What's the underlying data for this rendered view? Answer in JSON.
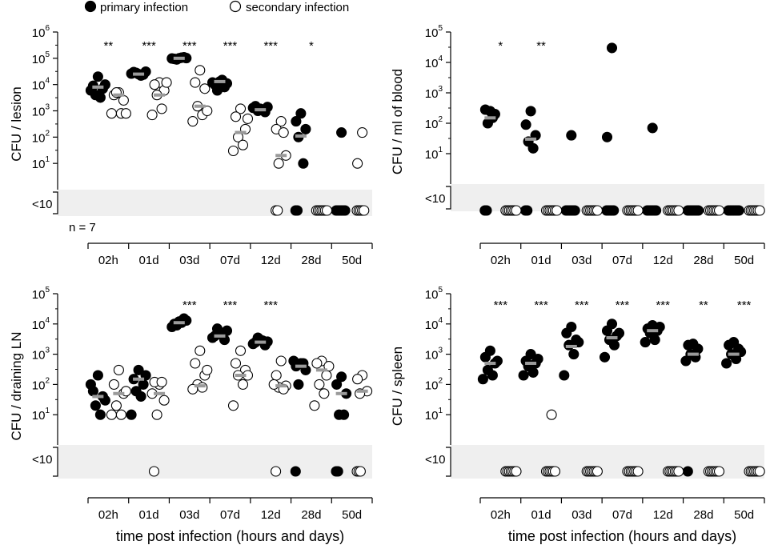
{
  "legend": {
    "primary": "primary infection",
    "secondary": "secondary infection"
  },
  "n_label": "n = 7",
  "below_label": "<10",
  "colors": {
    "band": "#efefef",
    "median": "#9a9a9a",
    "primary": "#000000",
    "secondary": "#ffffff"
  },
  "chart_data": [
    {
      "type": "scatter",
      "id": "lesion",
      "ylabel": "CFU / lesion",
      "xlabel": "",
      "categories": [
        "02h",
        "01d",
        "03d",
        "07d",
        "12d",
        "28d",
        "50d"
      ],
      "yscale": "log",
      "ylim": [
        1,
        1000000
      ],
      "yticks_exp": [
        1,
        2,
        3,
        4,
        5,
        6
      ],
      "below_detection": "<10",
      "stars": [
        "**",
        "***",
        "***",
        "***",
        "***",
        "*",
        ""
      ],
      "series": [
        {
          "name": "primary infection",
          "medians": [
            8000,
            25000,
            100000,
            13000,
            1100,
            110,
            null
          ],
          "points": [
            [
              20000,
              9000,
              7000,
              4000,
              3200,
              6000,
              10000
            ],
            [
              25000,
              30000,
              24000,
              28000,
              22000,
              26000,
              31000
            ],
            [
              100000,
              95000,
              110000,
              90000,
              105000,
              98000,
              102000
            ],
            [
              13000,
              10000,
              8000,
              6000,
              15000,
              12000,
              11000
            ],
            [
              1200,
              1500,
              900,
              1000,
              1100,
              1300,
              1400
            ],
            [
              800,
              400,
              200,
              100,
              10,
              "BD",
              "BD"
            ],
            [
              150,
              "BD",
              "BD",
              "BD",
              "BD",
              "BD",
              "BD"
            ]
          ]
        },
        {
          "name": "secondary infection",
          "medians": [
            4000,
            4000,
            1500,
            150,
            20,
            null,
            null
          ],
          "points": [
            [
              5000,
              4000,
              2500,
              5000,
              800,
              800,
              800
            ],
            [
              12000,
              10000,
              6000,
              4000,
              1200,
              700,
              12000
            ],
            [
              35000,
              12000,
              7000,
              1500,
              700,
              400,
              1000
            ],
            [
              1200,
              600,
              200,
              100,
              50,
              30,
              500
            ],
            [
              400,
              200,
              20,
              10,
              "BD",
              "BD",
              150
            ],
            [
              "BD",
              "BD",
              "BD",
              "BD",
              "BD",
              "BD",
              "BD"
            ],
            [
              150,
              10,
              "BD",
              "BD",
              "BD",
              "BD",
              "BD"
            ]
          ]
        }
      ]
    },
    {
      "type": "scatter",
      "id": "blood",
      "ylabel": "CFU / ml of blood",
      "xlabel": "",
      "categories": [
        "02h",
        "01d",
        "03d",
        "07d",
        "12d",
        "28d",
        "50d"
      ],
      "yscale": "log",
      "ylim": [
        1,
        100000
      ],
      "yticks_exp": [
        1,
        2,
        3,
        4,
        5
      ],
      "below_detection": "<10",
      "stars": [
        "*",
        "**",
        "",
        "",
        "",
        "",
        ""
      ],
      "series": [
        {
          "name": "primary infection",
          "medians": [
            150,
            30,
            null,
            null,
            null,
            null,
            null
          ],
          "points": [
            [
              250,
              280,
              200,
              100,
              150,
              "BD",
              "BD"
            ],
            [
              250,
              90,
              40,
              25,
              15,
              "BD",
              "BD"
            ],
            [
              40,
              "BD",
              "BD",
              "BD",
              "BD",
              "BD",
              "BD"
            ],
            [
              30000,
              35,
              "BD",
              "BD",
              "BD",
              "BD",
              "BD"
            ],
            [
              70,
              "BD",
              "BD",
              "BD",
              "BD",
              "BD",
              "BD"
            ],
            [
              "BD",
              "BD",
              "BD",
              "BD",
              "BD",
              "BD",
              "BD"
            ],
            [
              "BD",
              "BD",
              "BD",
              "BD",
              "BD",
              "BD",
              "BD"
            ]
          ]
        },
        {
          "name": "secondary infection",
          "medians": [
            null,
            null,
            null,
            null,
            null,
            null,
            null
          ],
          "points": [
            [
              "BD",
              "BD",
              "BD",
              "BD",
              "BD",
              "BD",
              "BD"
            ],
            [
              "BD",
              "BD",
              "BD",
              "BD",
              "BD",
              "BD",
              "BD"
            ],
            [
              "BD",
              "BD",
              "BD",
              "BD",
              "BD",
              "BD",
              "BD"
            ],
            [
              "BD",
              "BD",
              "BD",
              "BD",
              "BD",
              "BD",
              "BD"
            ],
            [
              "BD",
              "BD",
              "BD",
              "BD",
              "BD",
              "BD",
              "BD"
            ],
            [
              "BD",
              "BD",
              "BD",
              "BD",
              "BD",
              "BD",
              "BD"
            ],
            [
              "BD",
              "BD",
              "BD",
              "BD",
              "BD",
              "BD",
              "BD"
            ]
          ]
        }
      ]
    },
    {
      "type": "scatter",
      "id": "draining-ln",
      "ylabel": "CFU / draining LN",
      "xlabel": "time post infection (hours and days)",
      "categories": [
        "02h",
        "01d",
        "03d",
        "07d",
        "12d",
        "28d",
        "50d"
      ],
      "yscale": "log",
      "ylim": [
        1,
        100000
      ],
      "yticks_exp": [
        1,
        2,
        3,
        4,
        5
      ],
      "below_detection": "<10",
      "stars": [
        "",
        "",
        "***",
        "***",
        "***",
        "",
        ""
      ],
      "series": [
        {
          "name": "primary infection",
          "medians": [
            40,
            150,
            11000,
            4000,
            2500,
            400,
            50
          ],
          "points": [
            [
              200,
              60,
              40,
              20,
              10,
              100,
              30
            ],
            [
              300,
              150,
              100,
              60,
              40,
              10,
              200
            ],
            [
              12000,
              10000,
              15000,
              9000,
              11000,
              8000,
              13000
            ],
            [
              5000,
              4000,
              3000,
              7000,
              4500,
              3500,
              6000
            ],
            [
              3000,
              2500,
              2000,
              3500,
              2800,
              2200,
              2600
            ],
            [
              500,
              400,
              300,
              100,
              500,
              600,
              "BD"
            ],
            [
              180,
              100,
              50,
              10,
              10,
              "BD",
              "BD"
            ]
          ]
        },
        {
          "name": "secondary infection",
          "medians": [
            50,
            50,
            90,
            200,
            90,
            300,
            60
          ],
          "points": [
            [
              300,
              100,
              50,
              20,
              10,
              10,
              60
            ],
            [
              100,
              120,
              30,
              10,
              "BD",
              120,
              50
            ],
            [
              1300,
              500,
              200,
              100,
              80,
              70,
              300
            ],
            [
              1300,
              500,
              300,
              200,
              100,
              20,
              200
            ],
            [
              600,
              200,
              90,
              80,
              70,
              100,
              "BD"
            ],
            [
              600,
              500,
              200,
              100,
              50,
              20,
              400
            ],
            [
              200,
              150,
              60,
              50,
              "BD",
              "BD",
              "BD"
            ]
          ]
        }
      ]
    },
    {
      "type": "scatter",
      "id": "spleen",
      "ylabel": "CFU / spleen",
      "xlabel": "time post infection (hours and days)",
      "categories": [
        "02h",
        "01d",
        "03d",
        "07d",
        "12d",
        "28d",
        "50d"
      ],
      "yscale": "log",
      "ylim": [
        1,
        100000
      ],
      "yticks_exp": [
        1,
        2,
        3,
        4,
        5
      ],
      "below_detection": "<10",
      "stars": [
        "***",
        "***",
        "***",
        "***",
        "***",
        "**",
        "***"
      ],
      "series": [
        {
          "name": "primary infection",
          "medians": [
            500,
            500,
            1800,
            3500,
            6000,
            1000,
            1000
          ],
          "points": [
            [
              1300,
              800,
              500,
              300,
              200,
              150,
              600
            ],
            [
              1000,
              600,
              500,
              400,
              250,
              200,
              700
            ],
            [
              8000,
              5000,
              3000,
              2000,
              1000,
              200,
              2500
            ],
            [
              10000,
              6000,
              4000,
              3000,
              2000,
              800,
              5000
            ],
            [
              9000,
              7000,
              6000,
              5000,
              3000,
              2500,
              8000
            ],
            [
              2200,
              2000,
              1500,
              1000,
              800,
              600,
              "BD"
            ],
            [
              2500,
              2000,
              1500,
              1000,
              700,
              500,
              1200
            ]
          ]
        },
        {
          "name": "secondary infection",
          "medians": [
            null,
            null,
            null,
            null,
            null,
            null,
            null
          ],
          "points": [
            [
              "BD",
              "BD",
              "BD",
              "BD",
              "BD",
              "BD",
              "BD"
            ],
            [
              10,
              "BD",
              "BD",
              "BD",
              "BD",
              "BD",
              "BD"
            ],
            [
              "BD",
              "BD",
              "BD",
              "BD",
              "BD",
              "BD",
              "BD"
            ],
            [
              "BD",
              "BD",
              "BD",
              "BD",
              "BD",
              "BD",
              "BD"
            ],
            [
              "BD",
              "BD",
              "BD",
              "BD",
              "BD",
              "BD",
              "BD"
            ],
            [
              "BD",
              "BD",
              "BD",
              "BD",
              "BD",
              "BD",
              "BD"
            ],
            [
              "BD",
              "BD",
              "BD",
              "BD",
              "BD",
              "BD",
              "BD"
            ]
          ]
        }
      ]
    }
  ]
}
